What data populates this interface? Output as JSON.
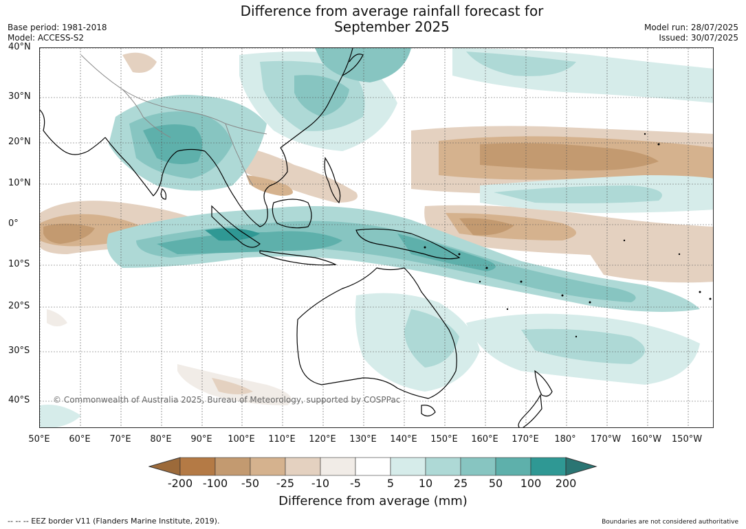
{
  "title_line1": "Difference from average rainfall forecast for",
  "title_line2": "September 2025",
  "meta_left": {
    "base_period": "Base period: 1981-2018",
    "model": "Model: ACCESS-S2"
  },
  "meta_right": {
    "model_run": "Model run: 28/07/2025",
    "issued": "Issued: 30/07/2025"
  },
  "lat_labels": [
    "40°N",
    "30°N",
    "20°N",
    "10°N",
    "0°",
    "10°S",
    "20°S",
    "30°S",
    "40°S"
  ],
  "lon_labels": [
    "50°E",
    "60°E",
    "70°E",
    "80°E",
    "90°E",
    "100°E",
    "110°E",
    "120°E",
    "130°E",
    "140°E",
    "150°E",
    "160°E",
    "170°E",
    "180°",
    "170°W",
    "160°W",
    "150°W"
  ],
  "copyright": "© Commonwealth of Australia 2025, Bureau of Meteorology, supported by COSPPac",
  "colorbar": {
    "ticks": [
      "-200",
      "-100",
      "-50",
      "-25",
      "-10",
      "-5",
      "5",
      "10",
      "25",
      "50",
      "100",
      "200"
    ],
    "colors": [
      "#9c6a3a",
      "#b47a45",
      "#c39a70",
      "#d5b28e",
      "#e4d1c0",
      "#f1ece7",
      "#ffffff",
      "#d6ecea",
      "#aed9d6",
      "#87c5c1",
      "#5eb0ab",
      "#2f9894",
      "#2a7573"
    ],
    "label": "Difference from average (mm)"
  },
  "footer_left": "--  --  -- EEZ border V11 (Flanders Marine Institute, 2019).",
  "footer_right": "Boundaries are not considered authoritative"
}
